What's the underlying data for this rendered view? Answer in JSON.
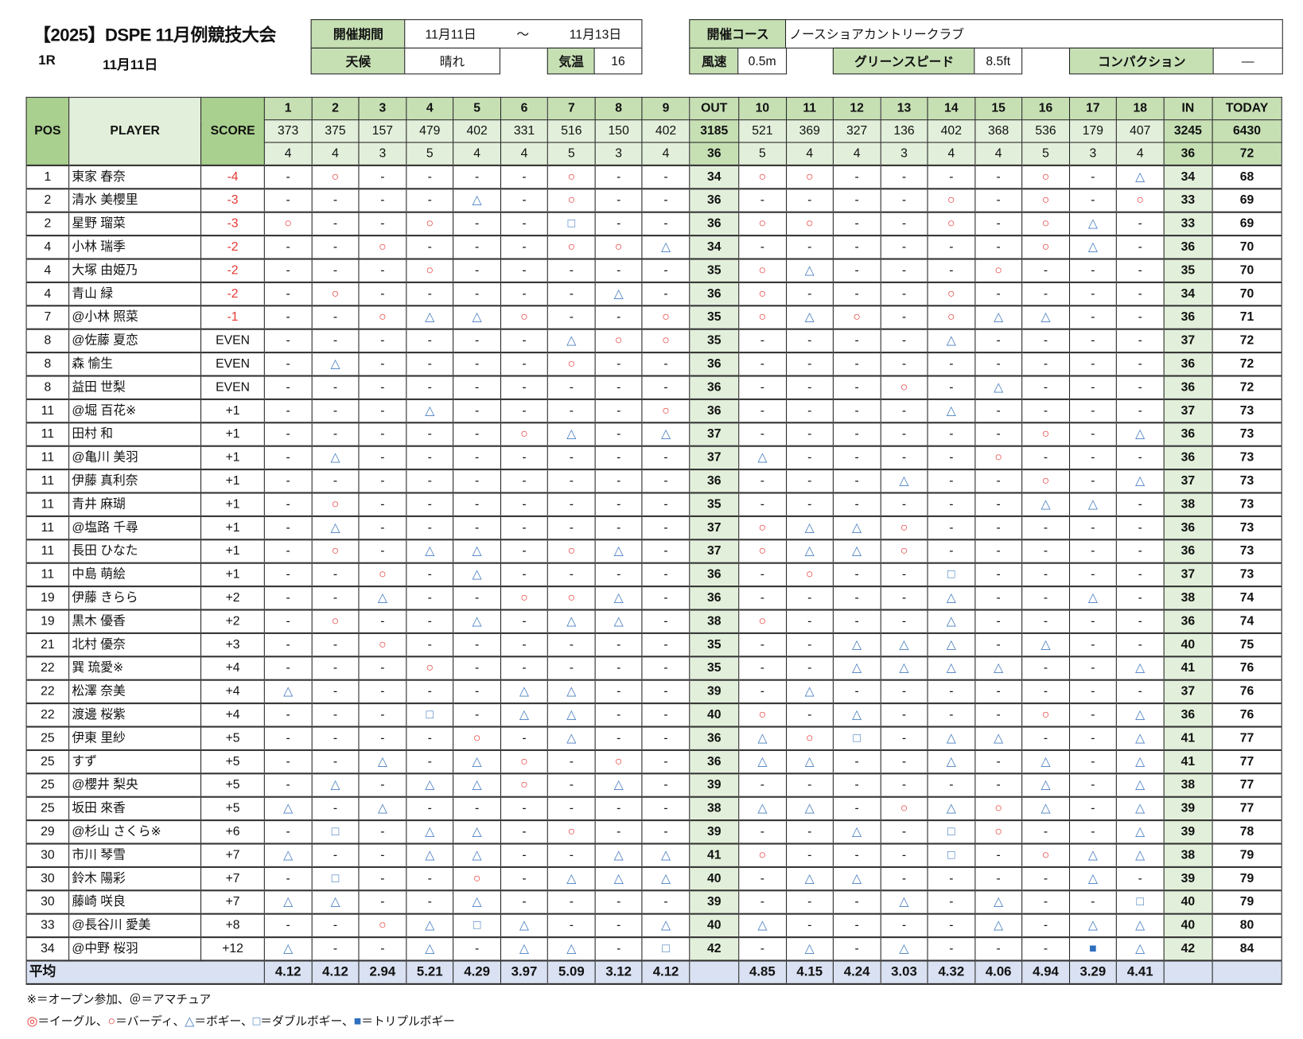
{
  "title": "【2025】DSPE 11月例競技大会",
  "round": "1R",
  "round_date": "11月11日",
  "info": {
    "period_label": "開催期間",
    "period_start": "11月11日",
    "period_sep": "～",
    "period_end": "11月13日",
    "weather_label": "天候",
    "weather": "晴れ",
    "temp_label": "気温",
    "temp": "16",
    "course_label": "開催コース",
    "course": "ノースショアカントリークラブ",
    "wind_label": "風速",
    "wind": "0.5m",
    "green_label": "グリーンスピード",
    "green": "8.5ft",
    "compaction_label": "コンパクション",
    "compaction": "—"
  },
  "table": {
    "headers": {
      "pos": "POS",
      "player": "PLAYER",
      "score": "SCORE",
      "out": "OUT",
      "in": "IN",
      "today": "TODAY"
    },
    "holes": [
      "1",
      "2",
      "3",
      "4",
      "5",
      "6",
      "7",
      "8",
      "9",
      "10",
      "11",
      "12",
      "13",
      "14",
      "15",
      "16",
      "17",
      "18"
    ],
    "yards": [
      "373",
      "375",
      "157",
      "479",
      "402",
      "331",
      "516",
      "150",
      "402",
      "521",
      "369",
      "327",
      "136",
      "402",
      "368",
      "536",
      "179",
      "407"
    ],
    "yards_out": "3185",
    "yards_in": "3245",
    "yards_total": "6430",
    "pars": [
      "4",
      "4",
      "3",
      "5",
      "4",
      "4",
      "5",
      "3",
      "4",
      "5",
      "4",
      "4",
      "3",
      "4",
      "4",
      "5",
      "3",
      "4"
    ],
    "par_out": "36",
    "par_in": "36",
    "par_total": "72",
    "rows": [
      {
        "pos": "1",
        "player": "東家 春奈",
        "score": "-4",
        "front": "-○----○--",
        "out": "34",
        "back": "○○----○-△",
        "in": "34",
        "today": "68"
      },
      {
        "pos": "2",
        "player": "清水 美櫻里",
        "score": "-3",
        "front": "----△-○--",
        "out": "36",
        "back": "----○-○-○",
        "in": "33",
        "today": "69"
      },
      {
        "pos": "2",
        "player": "星野 瑠菜",
        "score": "-3",
        "front": "○--○--□--",
        "out": "36",
        "back": "○○--○-○△-",
        "in": "33",
        "today": "69"
      },
      {
        "pos": "4",
        "player": "小林 瑞季",
        "score": "-2",
        "front": "--○---○○△",
        "out": "34",
        "back": "------○△-",
        "in": "36",
        "today": "70"
      },
      {
        "pos": "4",
        "player": "大塚 由姫乃",
        "score": "-2",
        "front": "---○-----",
        "out": "35",
        "back": "○△---○---",
        "in": "35",
        "today": "70"
      },
      {
        "pos": "4",
        "player": "青山 緑",
        "score": "-2",
        "front": "-○-----△-",
        "out": "36",
        "back": "○---○----",
        "in": "34",
        "today": "70"
      },
      {
        "pos": "7",
        "player": "@小林 照菜",
        "score": "-1",
        "front": "--○△△○--○",
        "out": "35",
        "back": "○△○-○△△--",
        "in": "36",
        "today": "71"
      },
      {
        "pos": "8",
        "player": "@佐藤 夏恋",
        "score": "EVEN",
        "front": "------△○○",
        "out": "35",
        "back": "----△----",
        "in": "37",
        "today": "72"
      },
      {
        "pos": "8",
        "player": "森 愉生",
        "score": "EVEN",
        "front": "-△----○--",
        "out": "36",
        "back": "---------",
        "in": "36",
        "today": "72"
      },
      {
        "pos": "8",
        "player": "益田 世梨",
        "score": "EVEN",
        "front": "---------",
        "out": "36",
        "back": "---○-△---",
        "in": "36",
        "today": "72"
      },
      {
        "pos": "11",
        "player": "@堀 百花※",
        "score": "+1",
        "front": "---△----○",
        "out": "36",
        "back": "----△----",
        "in": "37",
        "today": "73"
      },
      {
        "pos": "11",
        "player": "田村 和",
        "score": "+1",
        "front": "-----○△-△",
        "out": "37",
        "back": "------○-△",
        "in": "36",
        "today": "73"
      },
      {
        "pos": "11",
        "player": "@亀川 美羽",
        "score": "+1",
        "front": "-△-------",
        "out": "37",
        "back": "△----○---",
        "in": "36",
        "today": "73"
      },
      {
        "pos": "11",
        "player": "伊藤 真利奈",
        "score": "+1",
        "front": "---------",
        "out": "36",
        "back": "---△--○-△",
        "in": "37",
        "today": "73"
      },
      {
        "pos": "11",
        "player": "青井 麻瑚",
        "score": "+1",
        "front": "-○-------",
        "out": "35",
        "back": "------△△-",
        "in": "38",
        "today": "73"
      },
      {
        "pos": "11",
        "player": "@塩路 千尋",
        "score": "+1",
        "front": "-△-------",
        "out": "37",
        "back": "○△△○-----",
        "in": "36",
        "today": "73"
      },
      {
        "pos": "11",
        "player": "長田 ひなた",
        "score": "+1",
        "front": "-○-△△-○△-",
        "out": "37",
        "back": "○△△○-----",
        "in": "36",
        "today": "73"
      },
      {
        "pos": "11",
        "player": "中島 萌絵",
        "score": "+1",
        "front": "--○-△----",
        "out": "36",
        "back": "-○--□----",
        "in": "37",
        "today": "73"
      },
      {
        "pos": "19",
        "player": "伊藤 きらら",
        "score": "+2",
        "front": "--△--○○△-",
        "out": "36",
        "back": "----△--△-",
        "in": "38",
        "today": "74"
      },
      {
        "pos": "19",
        "player": "黒木 優香",
        "score": "+2",
        "front": "-○--△-△△-",
        "out": "38",
        "back": "○---△----",
        "in": "36",
        "today": "74"
      },
      {
        "pos": "21",
        "player": "北村 優奈",
        "score": "+3",
        "front": "--○------",
        "out": "35",
        "back": "--△△△-△--",
        "in": "40",
        "today": "75"
      },
      {
        "pos": "22",
        "player": "巽 琉愛※",
        "score": "+4",
        "front": "---○-----",
        "out": "35",
        "back": "--△△△△--△",
        "in": "41",
        "today": "76"
      },
      {
        "pos": "22",
        "player": "松澤 奈美",
        "score": "+4",
        "front": "△----△△--",
        "out": "39",
        "back": "-△-------",
        "in": "37",
        "today": "76"
      },
      {
        "pos": "22",
        "player": "渡邊 桜紫",
        "score": "+4",
        "front": "---□-△△--",
        "out": "40",
        "back": "○-△---○-△",
        "in": "36",
        "today": "76"
      },
      {
        "pos": "25",
        "player": "伊東 里紗",
        "score": "+5",
        "front": "----○-△--",
        "out": "36",
        "back": "△○□-△△--△",
        "in": "41",
        "today": "77"
      },
      {
        "pos": "25",
        "player": "すず",
        "score": "+5",
        "front": "--△-△○-○-",
        "out": "36",
        "back": "△△--△-△-△",
        "in": "41",
        "today": "77"
      },
      {
        "pos": "25",
        "player": "@櫻井 梨央",
        "score": "+5",
        "front": "-△-△△○-△-",
        "out": "39",
        "back": "------△-△",
        "in": "38",
        "today": "77"
      },
      {
        "pos": "25",
        "player": "坂田 來香",
        "score": "+5",
        "front": "△-△------",
        "out": "38",
        "back": "△△-○△○△-△",
        "in": "39",
        "today": "77"
      },
      {
        "pos": "29",
        "player": "@杉山 さくら※",
        "score": "+6",
        "front": "-□-△△-○--",
        "out": "39",
        "back": "--△-□○--△",
        "in": "39",
        "today": "78"
      },
      {
        "pos": "30",
        "player": "市川 琴雪",
        "score": "+7",
        "front": "△--△△--△△",
        "out": "41",
        "back": "○---□-○△△",
        "in": "38",
        "today": "79"
      },
      {
        "pos": "30",
        "player": "鈴木 陽彩",
        "score": "+7",
        "front": "-□--○-△△△",
        "out": "40",
        "back": "-△△----△-",
        "in": "39",
        "today": "79"
      },
      {
        "pos": "30",
        "player": "藤崎 咲良",
        "score": "+7",
        "front": "△△--△----",
        "out": "39",
        "back": "---△-△--□",
        "in": "40",
        "today": "79"
      },
      {
        "pos": "33",
        "player": "@長谷川 愛美",
        "score": "+8",
        "front": "--○△□△--△",
        "out": "40",
        "back": "△----△-△△",
        "in": "40",
        "today": "80"
      },
      {
        "pos": "34",
        "player": "@中野 桜羽",
        "score": "+12",
        "front": "△--△-△△-□",
        "out": "42",
        "back": "-△-△---■△",
        "in": "42",
        "today": "84"
      }
    ],
    "avg_label": "平均",
    "avg_front": [
      "4.12",
      "4.12",
      "2.94",
      "5.21",
      "4.29",
      "3.97",
      "5.09",
      "3.12",
      "4.12"
    ],
    "avg_back": [
      "4.85",
      "4.15",
      "4.24",
      "3.03",
      "4.32",
      "4.06",
      "4.94",
      "3.29",
      "4.41"
    ]
  },
  "notes": {
    "line1": "※＝オープン参加、＠＝アマチュア",
    "legend": [
      {
        "symbol": "◎",
        "label": "＝イーグル、"
      },
      {
        "symbol": "○",
        "label": "＝バーディ、"
      },
      {
        "symbol": "△",
        "label": "＝ボギー、"
      },
      {
        "symbol": "□",
        "label": "＝ダブルボギー、"
      },
      {
        "symbol": "■",
        "label": "＝トリプルボギー"
      }
    ]
  },
  "colors": {
    "header_dark": "#a9d08e",
    "header_mid": "#c6e0b4",
    "header_light": "#e2efda",
    "average_row": "#d9e1f2",
    "under_par": "#e53935",
    "bogey": "#4a7fc1"
  }
}
